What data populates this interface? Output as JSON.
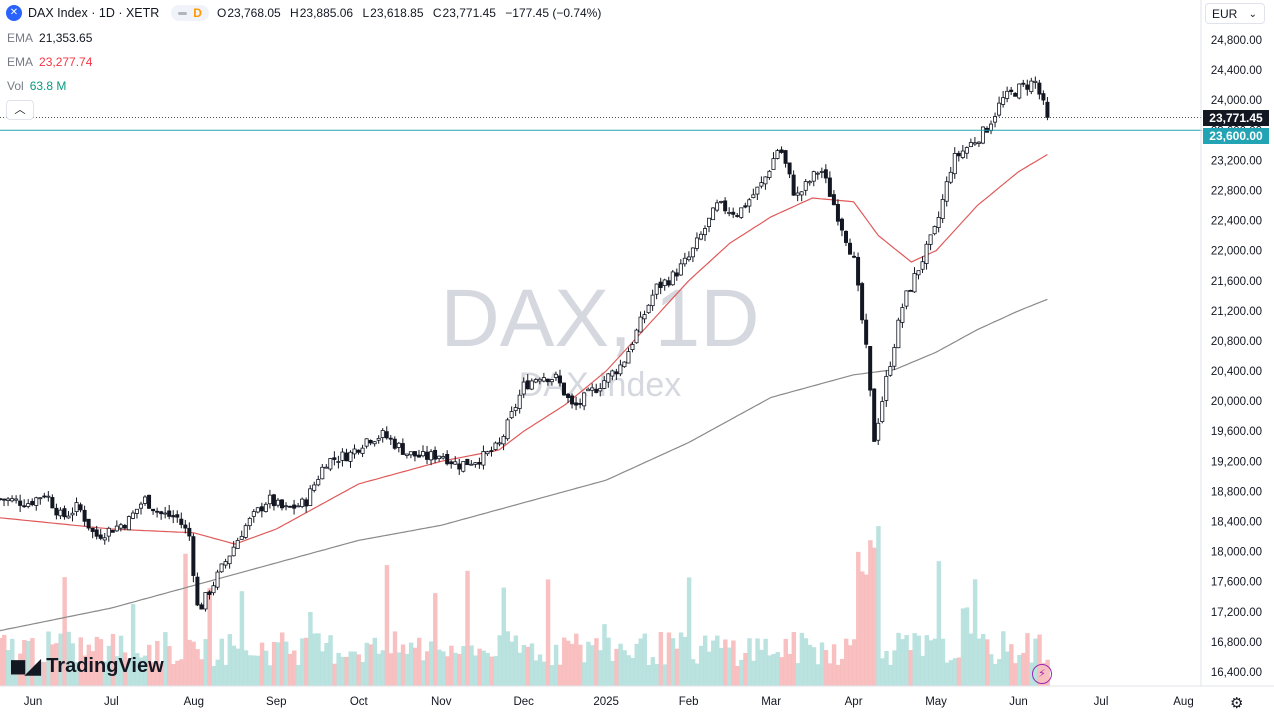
{
  "header": {
    "symbol": "DAX Index · 1D · XETR",
    "interval": "D",
    "open_label": "O",
    "open": "23,768.05",
    "high_label": "H",
    "high": "23,885.06",
    "low_label": "L",
    "low": "23,618.85",
    "close_label": "C",
    "close": "23,771.45",
    "change": "−177.45 (−0.74%)"
  },
  "indicators": [
    {
      "name": "EMA",
      "value": "21,353.65",
      "color": "#787b86"
    },
    {
      "name": "EMA",
      "value": "23,277.74",
      "color": "#f23645"
    },
    {
      "name": "Vol",
      "value": "63.8 M",
      "color": "#089981"
    }
  ],
  "currency": "EUR",
  "watermark": {
    "title": "DAX, 1D",
    "subtitle": "DAX Index"
  },
  "brand": "TradingView",
  "price_labels": {
    "last": {
      "text": "23,771.45",
      "color": "#131722"
    },
    "line": {
      "text": "23,600.00",
      "color": "#22a4b5"
    }
  },
  "colors": {
    "up": "#131722",
    "down": "#131722",
    "ema50": "#e05a5a",
    "ema200": "#8a8a8a",
    "vol_up": "#b2dfdb",
    "vol_down": "#f7b9b9",
    "hline": "#22a4b5"
  },
  "chart_data": {
    "type": "candlestick",
    "y_axis": {
      "ticks": [
        24800,
        24400,
        24000,
        23600,
        23200,
        22800,
        22400,
        22000,
        21600,
        21200,
        20800,
        20400,
        20000,
        19600,
        19200,
        18800,
        18400,
        18000,
        17600,
        17200,
        16800,
        16400
      ],
      "tick_labels": [
        "24,800.00",
        "24,400.00",
        "24,000.00",
        "23,600.00",
        "23,200.00",
        "22,800.00",
        "22,400.00",
        "22,000.00",
        "21,600.00",
        "21,200.00",
        "20,800.00",
        "20,400.00",
        "20,000.00",
        "19,600.00",
        "19,200.00",
        "18,800.00",
        "18,400.00",
        "18,000.00",
        "17,600.00",
        "17,200.00",
        "16,800.00",
        "16,400.00"
      ],
      "range": [
        16100,
        25100
      ]
    },
    "x_axis": {
      "labels": [
        "Jun",
        "Jul",
        "Aug",
        "Sep",
        "Oct",
        "Nov",
        "Dec",
        "2025",
        "Feb",
        "Mar",
        "Apr",
        "May",
        "Jun",
        "Jul",
        "Aug"
      ],
      "months_from_start": [
        0.05,
        1.0,
        2.0,
        3.0,
        4.0,
        5.0,
        6.0,
        7.0,
        8.0,
        9.0,
        10.0,
        11.0,
        12.0,
        13.0,
        14.0
      ],
      "range_months": [
        -0.35,
        14.2
      ]
    },
    "close_path": [
      [
        -0.35,
        18700
      ],
      [
        0.0,
        18650
      ],
      [
        0.2,
        18780
      ],
      [
        0.4,
        18450
      ],
      [
        0.6,
        18600
      ],
      [
        0.8,
        18200
      ],
      [
        1.0,
        18300
      ],
      [
        1.2,
        18400
      ],
      [
        1.4,
        18700
      ],
      [
        1.6,
        18500
      ],
      [
        1.8,
        18450
      ],
      [
        1.95,
        18200
      ],
      [
        2.05,
        17200
      ],
      [
        2.15,
        17400
      ],
      [
        2.4,
        17900
      ],
      [
        2.6,
        18300
      ],
      [
        2.9,
        18700
      ],
      [
        3.1,
        18550
      ],
      [
        3.35,
        18650
      ],
      [
        3.6,
        19200
      ],
      [
        3.9,
        19300
      ],
      [
        4.1,
        19500
      ],
      [
        4.3,
        19550
      ],
      [
        4.6,
        19300
      ],
      [
        4.8,
        19250
      ],
      [
        5.0,
        19300
      ],
      [
        5.2,
        19150
      ],
      [
        5.5,
        19250
      ],
      [
        5.7,
        19400
      ],
      [
        6.0,
        20200
      ],
      [
        6.2,
        20350
      ],
      [
        6.4,
        20300
      ],
      [
        6.6,
        19900
      ],
      [
        6.8,
        20100
      ],
      [
        7.0,
        20300
      ],
      [
        7.2,
        20500
      ],
      [
        7.4,
        21000
      ],
      [
        7.6,
        21500
      ],
      [
        7.8,
        21650
      ],
      [
        8.0,
        21900
      ],
      [
        8.2,
        22300
      ],
      [
        8.35,
        22600
      ],
      [
        8.6,
        22500
      ],
      [
        8.9,
        22900
      ],
      [
        9.1,
        23400
      ],
      [
        9.3,
        22700
      ],
      [
        9.6,
        23100
      ],
      [
        9.8,
        22500
      ],
      [
        10.0,
        21900
      ],
      [
        10.15,
        20700
      ],
      [
        10.25,
        19500
      ],
      [
        10.4,
        20300
      ],
      [
        10.6,
        21300
      ],
      [
        10.8,
        21800
      ],
      [
        11.0,
        22300
      ],
      [
        11.2,
        23200
      ],
      [
        11.4,
        23400
      ],
      [
        11.6,
        23600
      ],
      [
        11.8,
        24000
      ],
      [
        12.0,
        24150
      ],
      [
        12.2,
        24250
      ],
      [
        12.35,
        23771
      ]
    ],
    "ema_50": {
      "label": "EMA",
      "value": 23277.74,
      "path": [
        [
          -0.35,
          18450
        ],
        [
          1.0,
          18300
        ],
        [
          2.0,
          18250
        ],
        [
          2.5,
          18100
        ],
        [
          3.0,
          18300
        ],
        [
          4.0,
          18900
        ],
        [
          5.0,
          19200
        ],
        [
          5.7,
          19350
        ],
        [
          6.0,
          19600
        ],
        [
          6.5,
          19950
        ],
        [
          7.0,
          20400
        ],
        [
          7.5,
          21000
        ],
        [
          8.0,
          21600
        ],
        [
          8.5,
          22100
        ],
        [
          9.0,
          22450
        ],
        [
          9.5,
          22700
        ],
        [
          10.0,
          22650
        ],
        [
          10.3,
          22200
        ],
        [
          10.7,
          21850
        ],
        [
          11.0,
          22000
        ],
        [
          11.5,
          22600
        ],
        [
          12.0,
          23050
        ],
        [
          12.35,
          23278
        ]
      ]
    },
    "ema_200": {
      "label": "EMA",
      "value": 21353.65,
      "path": [
        [
          -0.35,
          16950
        ],
        [
          1.0,
          17250
        ],
        [
          2.0,
          17550
        ],
        [
          3.0,
          17850
        ],
        [
          4.0,
          18150
        ],
        [
          5.0,
          18350
        ],
        [
          6.0,
          18650
        ],
        [
          7.0,
          18950
        ],
        [
          8.0,
          19450
        ],
        [
          9.0,
          20050
        ],
        [
          10.0,
          20350
        ],
        [
          10.5,
          20420
        ],
        [
          11.0,
          20650
        ],
        [
          11.5,
          20950
        ],
        [
          12.0,
          21200
        ],
        [
          12.35,
          21354
        ]
      ]
    },
    "volume": {
      "label": "Vol",
      "last_value": "63.8 M"
    },
    "horizontal_line": 23600,
    "last_price": 23771.45
  }
}
